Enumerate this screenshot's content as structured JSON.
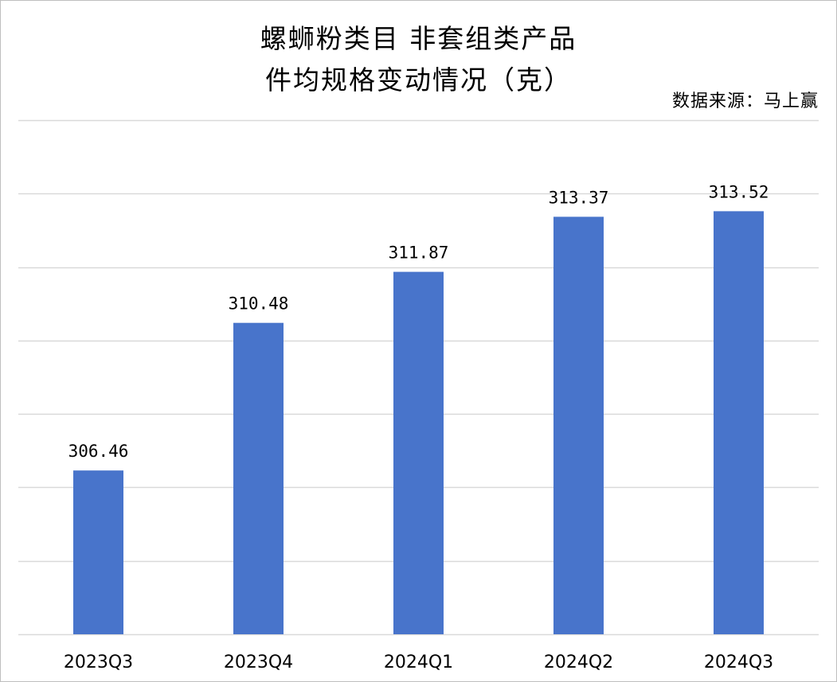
{
  "chart_data": {
    "type": "bar",
    "title_lines": [
      "螺蛳粉类目 非套组类产品",
      "件均规格变动情况（克）"
    ],
    "source": "数据来源：马上赢",
    "categories": [
      "2023Q3",
      "2023Q4",
      "2024Q1",
      "2024Q2",
      "2024Q3"
    ],
    "series": [
      {
        "values": [
          306.46,
          310.48,
          311.87,
          313.37,
          313.52
        ],
        "color": "#4874cb"
      }
    ],
    "value_labels": [
      "306.46",
      "310.48",
      "311.87",
      "313.37",
      "313.52"
    ],
    "ylim": [
      302,
      316
    ],
    "grid": true,
    "legend": "none"
  }
}
